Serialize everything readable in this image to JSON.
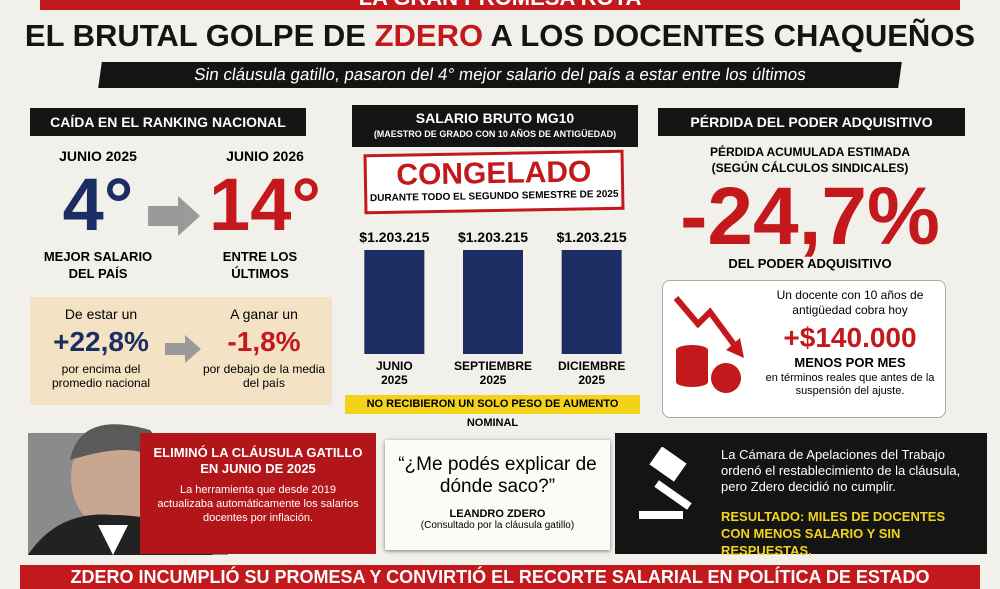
{
  "banner_top": "LA GRAN PROMESA ROTA",
  "header": {
    "title_parts": [
      "EL BRUTAL GOLPE DE ",
      "ZDERO",
      " A LOS DOCENTES CHAQUEÑOS"
    ],
    "subtitle": "Sin cláusula gatillo, pasaron del 4° mejor salario del país a estar entre los últimos"
  },
  "ranking": {
    "heading": "CAÍDA EN EL RANKING NACIONAL",
    "from": {
      "date": "JUNIO 2025",
      "rank": "4°",
      "caption": "MEJOR SALARIO DEL PAÍS"
    },
    "to": {
      "date": "JUNIO 2026",
      "rank": "14°",
      "caption": "ENTRE LOS ÚLTIMOS"
    },
    "compare": {
      "from_intro": "De estar un",
      "from_value": "+22,8%",
      "from_caption": "por encima del promedio nacional",
      "to_intro": "A ganar un",
      "to_value": "-1,8%",
      "to_caption": "por debajo de la media del país"
    }
  },
  "salary": {
    "heading": "SALARIO BRUTO MG10",
    "subheading": "(MAESTRO DE GRADO CON 10 AÑOS DE ANTIGÜEDAD)",
    "stamp": "CONGELADO",
    "stamp_caption": "DURANTE TODO EL SEGUNDO SEMESTRE DE 2025",
    "footer": "NO RECIBIERON UN SOLO PESO DE AUMENTO NOMINAL"
  },
  "chart_data": {
    "type": "bar",
    "categories": [
      "JUNIO 2025",
      "SEPTIEMBRE 2025",
      "DICIEMBRE 2025"
    ],
    "values": [
      1203215,
      1203215,
      1203215
    ],
    "value_labels": [
      "$1.203.215",
      "$1.203.215",
      "$1.203.215"
    ],
    "color": "#1b2d62"
  },
  "loss": {
    "heading": "PÉRDIDA DEL PODER ADQUISITIVO",
    "intro": "PÉRDIDA ACUMULADA ESTIMADA",
    "intro_note": "(SEGÚN CÁLCULOS SINDICALES)",
    "value": "-24,7%",
    "caption": "DEL PODER ADQUISITIVO",
    "box_intro": "Un docente con 10 años de antigüedad cobra hoy",
    "box_value": "+$140.000",
    "box_unit": "MENOS POR MES",
    "box_caption": "en términos reales que antes de la suspensión del ajuste."
  },
  "clause": {
    "title": "ELIMINÓ LA CLÁUSULA GATILLO EN JUNIO DE 2025",
    "text": "La herramienta que desde 2019 actualizaba automáticamente los salarios docentes por inflación."
  },
  "quote": {
    "text": "“¿Me podés explicar de dónde saco?”",
    "author": "LEANDRO ZDERO",
    "note": "(Consultado por la cláusula gatillo)"
  },
  "court": {
    "text": "La Cámara de Apelaciones del Trabajo ordenó el restablecimiento de la cláusula, pero Zdero decidió no cumplir.",
    "result": "RESULTADO: MILES DE DOCENTES CON MENOS SALARIO Y SIN RESPUESTAS."
  },
  "banner_bottom": "ZDERO INCUMPLIÓ SU PROMESA Y CONVIRTIÓ EL RECORTE SALARIAL EN POLÍTICA DE ESTADO"
}
